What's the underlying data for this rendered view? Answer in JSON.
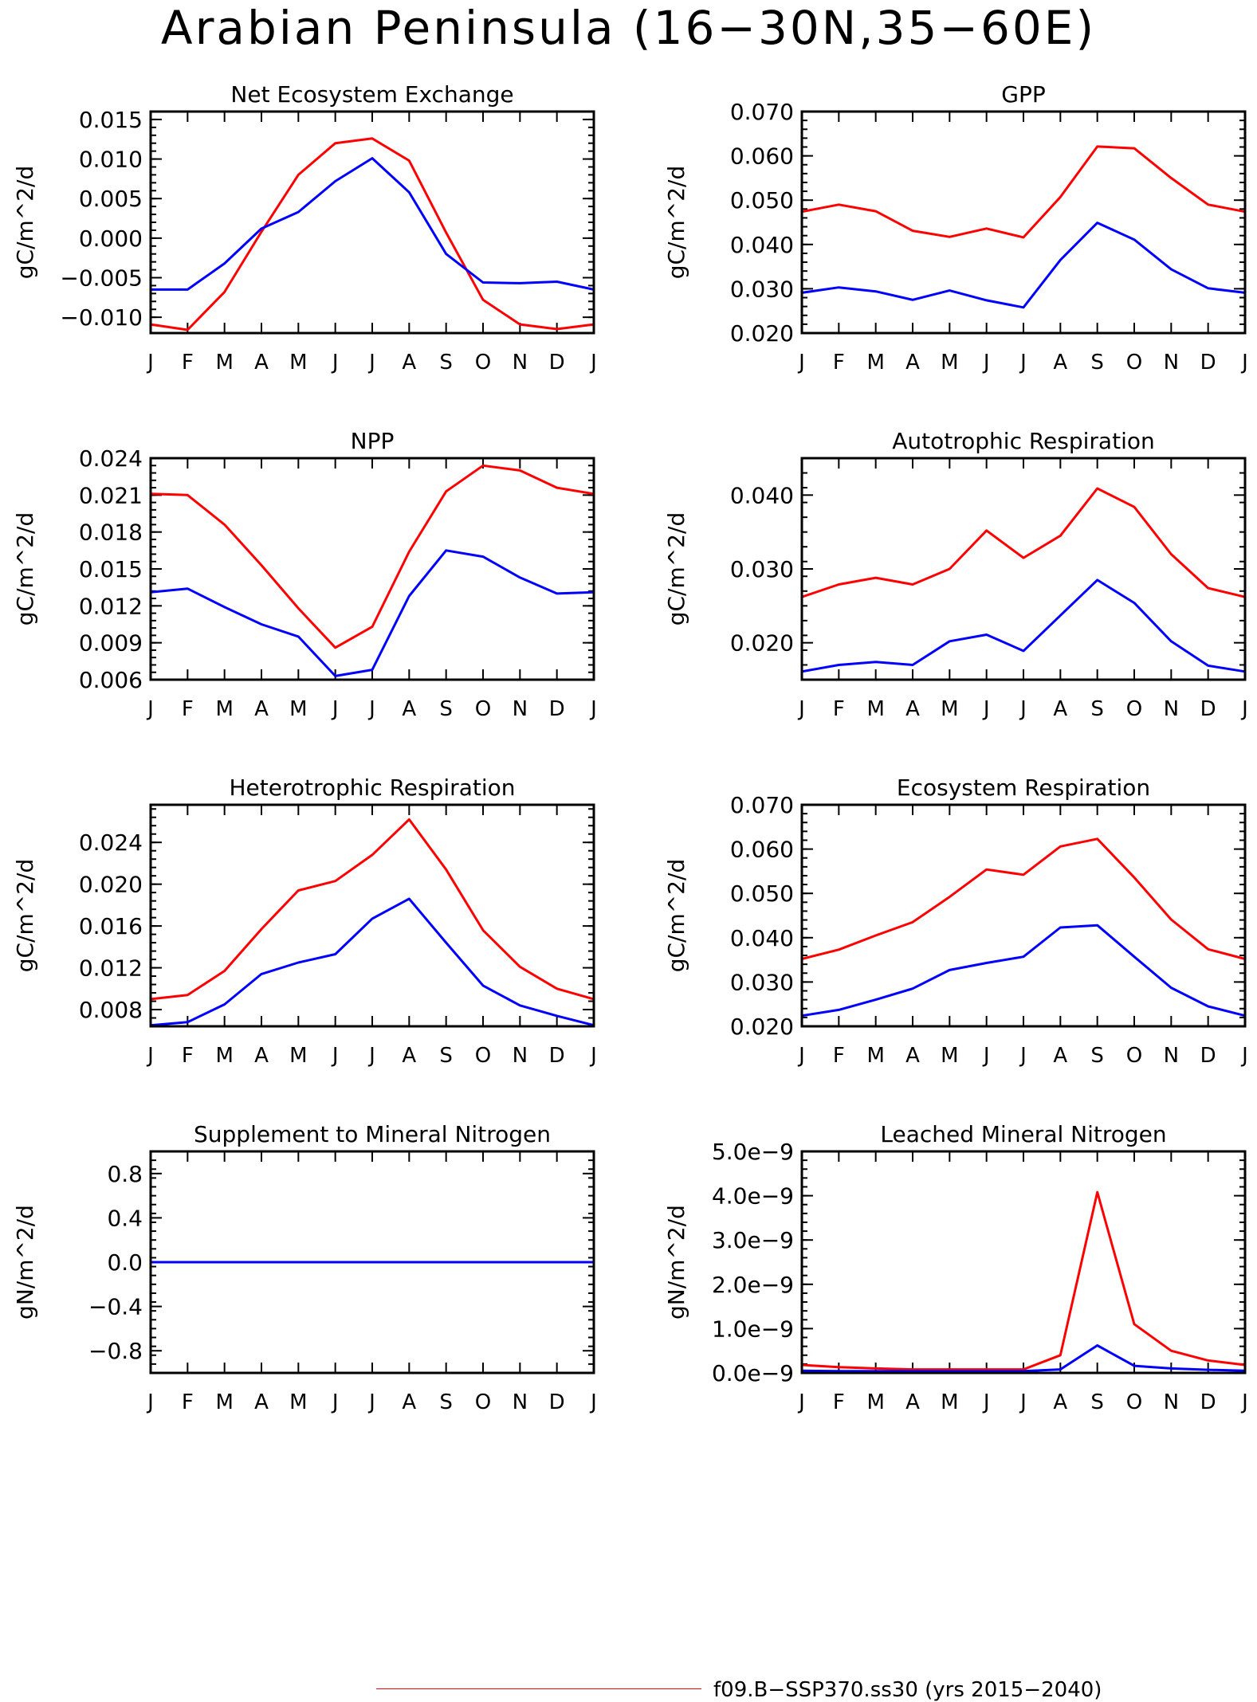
{
  "title": "Arabian Peninsula (16−30N,35−60E)",
  "colors": {
    "series_a": "#ff0000",
    "series_b": "#0000ff",
    "axis": "#000000"
  },
  "legend": {
    "label": "f09.B−SSP370.ss30 (yrs 2015−2040)"
  },
  "chart_data": [
    {
      "type": "line",
      "title": "Net Ecosystem Exchange",
      "ylabel": "gC/m^2/d",
      "categories": [
        "J",
        "F",
        "M",
        "A",
        "M",
        "J",
        "J",
        "A",
        "S",
        "O",
        "N",
        "D",
        "J"
      ],
      "yticks": [
        -0.01,
        -0.005,
        0.0,
        0.005,
        0.01,
        0.015
      ],
      "ytick_labels": [
        "−0.010",
        "−0.005",
        "0.000",
        "0.005",
        "0.010",
        "0.015"
      ],
      "ylim": [
        -0.012,
        0.016
      ],
      "series": [
        {
          "color": "#ff0000",
          "values": [
            -0.0109,
            -0.0116,
            -0.0068,
            0.0008,
            0.008,
            0.012,
            0.0126,
            0.0098,
            0.0007,
            -0.0078,
            -0.0109,
            -0.0115,
            -0.0109
          ]
        },
        {
          "color": "#0000ff",
          "values": [
            -0.0065,
            -0.0065,
            -0.0032,
            0.0012,
            0.0033,
            0.0072,
            0.0101,
            0.0058,
            -0.002,
            -0.0056,
            -0.0057,
            -0.0055,
            -0.0065
          ]
        }
      ]
    },
    {
      "type": "line",
      "title": "GPP",
      "ylabel": "gC/m^2/d",
      "categories": [
        "J",
        "F",
        "M",
        "A",
        "M",
        "J",
        "J",
        "A",
        "S",
        "O",
        "N",
        "D",
        "J"
      ],
      "yticks": [
        0.02,
        0.03,
        0.04,
        0.05,
        0.06,
        0.07
      ],
      "ytick_labels": [
        "0.020",
        "0.030",
        "0.040",
        "0.050",
        "0.060",
        "0.070"
      ],
      "ylim": [
        0.02,
        0.07
      ],
      "series": [
        {
          "color": "#ff0000",
          "values": [
            0.0474,
            0.049,
            0.0475,
            0.0431,
            0.0417,
            0.0436,
            0.0416,
            0.0507,
            0.0621,
            0.0617,
            0.055,
            0.049,
            0.0474
          ]
        },
        {
          "color": "#0000ff",
          "values": [
            0.0291,
            0.0303,
            0.0294,
            0.0275,
            0.0296,
            0.0274,
            0.0258,
            0.0365,
            0.0449,
            0.0411,
            0.0344,
            0.0301,
            0.0291
          ]
        }
      ]
    },
    {
      "type": "line",
      "title": "NPP",
      "ylabel": "gC/m^2/d",
      "categories": [
        "J",
        "F",
        "M",
        "A",
        "M",
        "J",
        "J",
        "A",
        "S",
        "O",
        "N",
        "D",
        "J"
      ],
      "yticks": [
        0.006,
        0.009,
        0.012,
        0.015,
        0.018,
        0.021,
        0.024
      ],
      "ytick_labels": [
        "0.006",
        "0.009",
        "0.012",
        "0.015",
        "0.018",
        "0.021",
        "0.024"
      ],
      "ylim": [
        0.006,
        0.024
      ],
      "series": [
        {
          "color": "#ff0000",
          "values": [
            0.0211,
            0.021,
            0.0186,
            0.0153,
            0.0118,
            0.0086,
            0.0103,
            0.0164,
            0.0213,
            0.0234,
            0.023,
            0.0216,
            0.0211
          ]
        },
        {
          "color": "#0000ff",
          "values": [
            0.0131,
            0.0134,
            0.0119,
            0.0105,
            0.0095,
            0.0063,
            0.0068,
            0.0128,
            0.0165,
            0.016,
            0.0143,
            0.013,
            0.0131
          ]
        }
      ]
    },
    {
      "type": "line",
      "title": "Autotrophic Respiration",
      "ylabel": "gC/m^2/d",
      "categories": [
        "J",
        "F",
        "M",
        "A",
        "M",
        "J",
        "J",
        "A",
        "S",
        "O",
        "N",
        "D",
        "J"
      ],
      "yticks": [
        0.02,
        0.03,
        0.04
      ],
      "ytick_labels": [
        "0.020",
        "0.030",
        "0.040"
      ],
      "ylim": [
        0.015,
        0.045
      ],
      "series": [
        {
          "color": "#ff0000",
          "values": [
            0.0262,
            0.0279,
            0.0288,
            0.0279,
            0.03,
            0.0352,
            0.0315,
            0.0345,
            0.0409,
            0.0384,
            0.032,
            0.0274,
            0.0262
          ]
        },
        {
          "color": "#0000ff",
          "values": [
            0.0161,
            0.017,
            0.0174,
            0.017,
            0.0202,
            0.0211,
            0.0189,
            0.0237,
            0.0285,
            0.0254,
            0.0202,
            0.0169,
            0.0161
          ]
        }
      ]
    },
    {
      "type": "line",
      "title": "Heterotrophic Respiration",
      "ylabel": "gC/m^2/d",
      "categories": [
        "J",
        "F",
        "M",
        "A",
        "M",
        "J",
        "J",
        "A",
        "S",
        "O",
        "N",
        "D",
        "J"
      ],
      "yticks": [
        0.008,
        0.012,
        0.016,
        0.02,
        0.024
      ],
      "ytick_labels": [
        "0.008",
        "0.012",
        "0.016",
        "0.020",
        "0.024"
      ],
      "ylim": [
        0.0064,
        0.0276
      ],
      "series": [
        {
          "color": "#ff0000",
          "values": [
            0.009,
            0.0094,
            0.0117,
            0.0157,
            0.0194,
            0.0203,
            0.0228,
            0.0262,
            0.0214,
            0.0156,
            0.0121,
            0.01,
            0.009
          ]
        },
        {
          "color": "#0000ff",
          "values": [
            0.0065,
            0.0068,
            0.0085,
            0.0114,
            0.0125,
            0.0133,
            0.0167,
            0.0186,
            0.0144,
            0.0103,
            0.0084,
            0.0074,
            0.0065
          ]
        }
      ]
    },
    {
      "type": "line",
      "title": "Ecosystem Respiration",
      "ylabel": "gC/m^2/d",
      "categories": [
        "J",
        "F",
        "M",
        "A",
        "M",
        "J",
        "J",
        "A",
        "S",
        "O",
        "N",
        "D",
        "J"
      ],
      "yticks": [
        0.02,
        0.03,
        0.04,
        0.05,
        0.06,
        0.07
      ],
      "ytick_labels": [
        "0.020",
        "0.030",
        "0.040",
        "0.050",
        "0.060",
        "0.070"
      ],
      "ylim": [
        0.02,
        0.07
      ],
      "series": [
        {
          "color": "#ff0000",
          "values": [
            0.0352,
            0.0373,
            0.0405,
            0.0435,
            0.0492,
            0.0554,
            0.0542,
            0.0606,
            0.0623,
            0.0536,
            0.0441,
            0.0374,
            0.0352
          ]
        },
        {
          "color": "#0000ff",
          "values": [
            0.0224,
            0.0237,
            0.026,
            0.0285,
            0.0327,
            0.0343,
            0.0357,
            0.0423,
            0.0428,
            0.0357,
            0.0287,
            0.0245,
            0.0224
          ]
        }
      ]
    },
    {
      "type": "line",
      "title": "Supplement to Mineral Nitrogen",
      "ylabel": "gN/m^2/d",
      "categories": [
        "J",
        "F",
        "M",
        "A",
        "M",
        "J",
        "J",
        "A",
        "S",
        "O",
        "N",
        "D",
        "J"
      ],
      "yticks": [
        -0.8,
        -0.4,
        0.0,
        0.4,
        0.8
      ],
      "ytick_labels": [
        "−0.8",
        "−0.4",
        "0.0",
        "0.4",
        "0.8"
      ],
      "ylim": [
        -1.0,
        1.0
      ],
      "series": [
        {
          "color": "#ff0000",
          "values": [
            0,
            0,
            0,
            0,
            0,
            0,
            0,
            0,
            0,
            0,
            0,
            0,
            0
          ]
        },
        {
          "color": "#0000ff",
          "values": [
            0,
            0,
            0,
            0,
            0,
            0,
            0,
            0,
            0,
            0,
            0,
            0,
            0
          ]
        }
      ]
    },
    {
      "type": "line",
      "title": "Leached Mineral Nitrogen",
      "ylabel": "gN/m^2/d",
      "categories": [
        "J",
        "F",
        "M",
        "A",
        "M",
        "J",
        "J",
        "A",
        "S",
        "O",
        "N",
        "D",
        "J"
      ],
      "yticks": [
        0,
        1e-09,
        2e-09,
        3e-09,
        4e-09,
        5e-09
      ],
      "ytick_labels": [
        "0.0e−9",
        "1.0e−9",
        "2.0e−9",
        "3.0e−9",
        "4.0e−9",
        "5.0e−9"
      ],
      "ylim": [
        0,
        5e-09
      ],
      "series": [
        {
          "color": "#ff0000",
          "values": [
            1.8e-10,
            1.3e-10,
            1e-10,
            8e-11,
            8e-11,
            8e-11,
            8e-11,
            4e-10,
            4.08e-09,
            1.1e-09,
            5e-10,
            2.8e-10,
            1.8e-10
          ]
        },
        {
          "color": "#0000ff",
          "values": [
            5e-11,
            4e-11,
            4e-11,
            4e-11,
            4e-11,
            4e-11,
            4e-11,
            8e-11,
            6.2e-10,
            1.6e-10,
            1e-10,
            7e-11,
            5e-11
          ]
        }
      ]
    }
  ]
}
